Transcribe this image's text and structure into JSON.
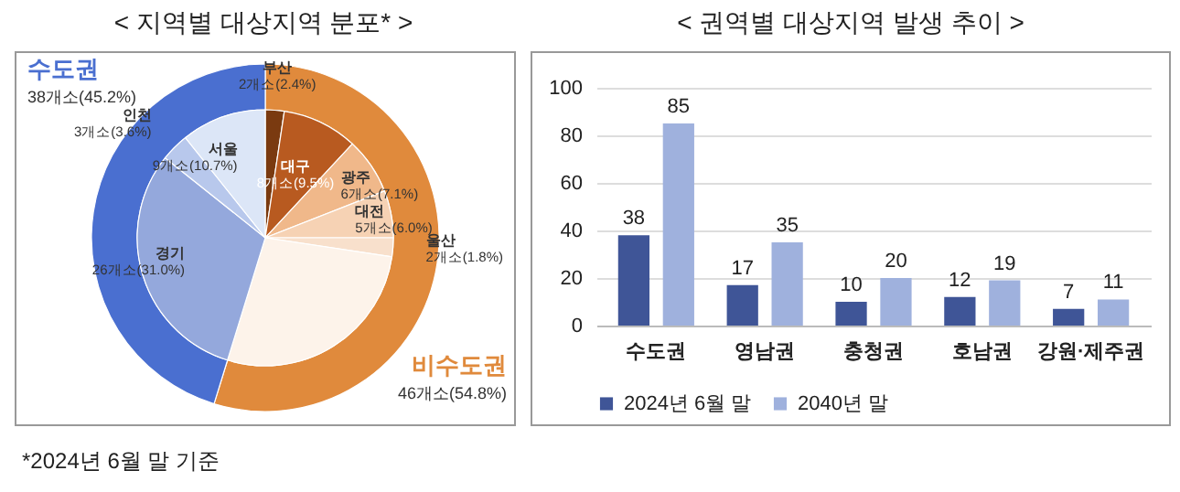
{
  "chart_data": [
    {
      "type": "donut",
      "title": "< 지역별 대상지역 분포* >",
      "categories": [
        "비수도권",
        "수도권"
      ],
      "values": [
        46,
        38
      ],
      "colors": [
        "#e08a3c",
        "#4a6fd0"
      ],
      "value_labels": [
        "46개소(54.8%)",
        "38개소(45.2%)"
      ],
      "annotations": [
        "*2024년 6월 말 기준"
      ]
    },
    {
      "type": "pie",
      "categories": [
        "부산",
        "대구",
        "광주",
        "대전",
        "울산",
        null,
        "경기",
        "인천",
        "서울"
      ],
      "values": [
        2,
        8,
        6,
        5,
        2,
        23,
        26,
        3,
        9
      ],
      "colors": [
        "#7a3a10",
        "#b85a20",
        "#f0b88a",
        "#f6d2b4",
        "#f8e0cc",
        "#fdf3ea",
        "#94a8dc",
        "#b8c8ec",
        "#dce6f7"
      ],
      "value_labels": [
        "2개소(2.4%)",
        "8개소(9.5%)",
        "6개소(7.1%)",
        "5개소(6.0%)",
        "2개소(1.8%)",
        null,
        "26개소(31.0%)",
        "3개소(3.6%)",
        "9개소(10.7%)"
      ]
    },
    {
      "type": "bar",
      "title": "< 권역별 대상지역 발생 추이 >",
      "categories": [
        "수도권",
        "영남권",
        "충청권",
        "호남권",
        "강원·제주권"
      ],
      "series": [
        {
          "name": "2024년 6월 말",
          "color": "#3f5597",
          "values": [
            38,
            17,
            10,
            12,
            7
          ]
        },
        {
          "name": "2040년 말",
          "color": "#9fb1dd",
          "values": [
            85,
            35,
            20,
            19,
            11
          ]
        }
      ],
      "ylim": [
        0,
        100
      ],
      "yticks": [
        0,
        20,
        40,
        60,
        80,
        100
      ],
      "grid": "y",
      "legend": "bottom",
      "data_labels": true
    }
  ]
}
